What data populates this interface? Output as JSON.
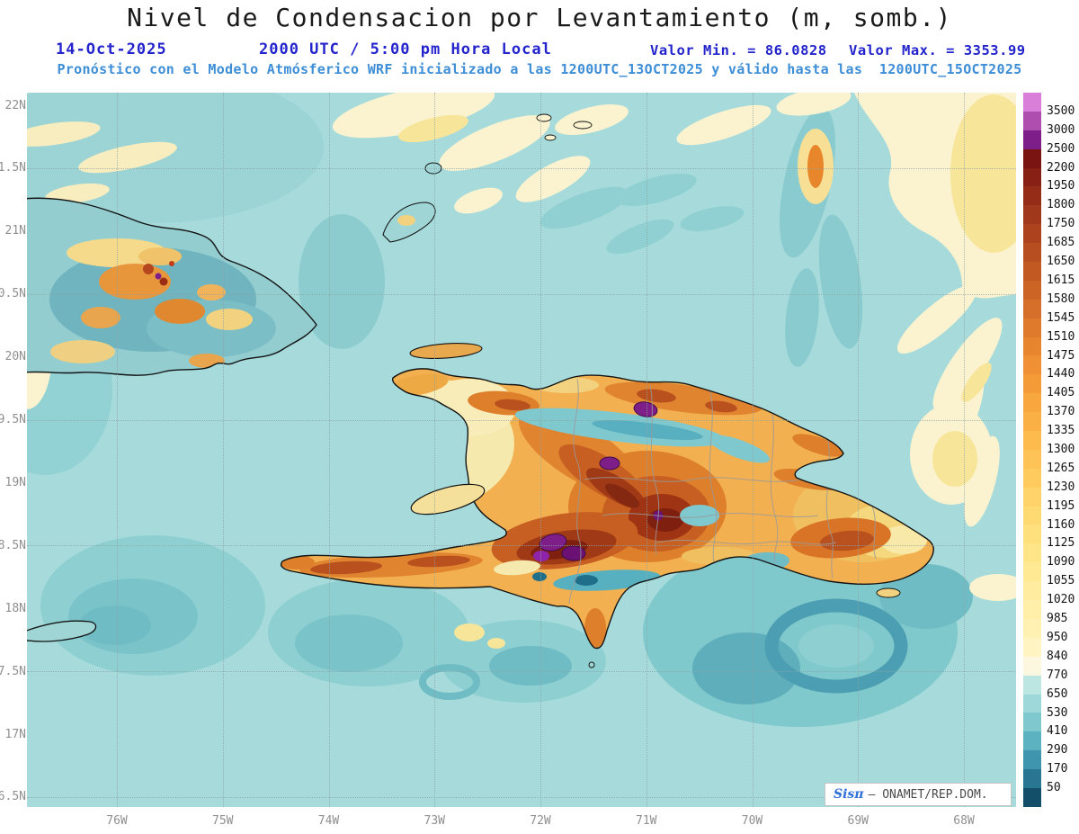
{
  "header": {
    "title": "Nivel de Condensacion por Levantamiento (m, somb.)",
    "date": "14-Oct-2025",
    "time": "2000 UTC / 5:00 pm Hora Local",
    "min_label": "Valor Min. = 86.0828",
    "max_label": "Valor Max. = 3353.99",
    "subtitle": "Pronóstico con el Modelo Atmósferico WRF inicializado a las 1200UTC_13OCT2025 y válido hasta las  1200UTC_15OCT2025"
  },
  "axes": {
    "lat_ticks": [
      "22N",
      "21.5N",
      "21N",
      "20.5N",
      "20N",
      "19.5N",
      "19N",
      "18.5N",
      "18N",
      "17.5N",
      "17N",
      "16.5N"
    ],
    "lon_ticks": [
      "76W",
      "75W",
      "74W",
      "73W",
      "72W",
      "71W",
      "70W",
      "69W",
      "68W"
    ]
  },
  "colorbar": {
    "levels": [
      3500,
      3000,
      2500,
      2200,
      1950,
      1800,
      1750,
      1685,
      1650,
      1615,
      1580,
      1545,
      1510,
      1475,
      1440,
      1405,
      1370,
      1335,
      1300,
      1265,
      1230,
      1195,
      1160,
      1125,
      1090,
      1055,
      1020,
      985,
      950,
      840,
      770,
      650,
      530,
      410,
      290,
      170,
      50
    ],
    "colors": [
      "#d97ed9",
      "#ae4fb0",
      "#7e1e88",
      "#7a1412",
      "#872015",
      "#942c18",
      "#a0381b",
      "#ac431e",
      "#b74e20",
      "#c25923",
      "#cc6426",
      "#d66f29",
      "#df7a2c",
      "#e7852f",
      "#ee9033",
      "#f49b38",
      "#f8a63e",
      "#fbb045",
      "#fdba4d",
      "#fec356",
      "#ffcb5f",
      "#ffd369",
      "#ffda73",
      "#ffe07d",
      "#ffe588",
      "#ffe993",
      "#ffec9e",
      "#ffefa8",
      "#fff1b2",
      "#fff4c2",
      "#fcf8df",
      "#bce6e2",
      "#9ed8d8",
      "#7fc8ce",
      "#5db2c1",
      "#4095ae",
      "#287692",
      "#134f68"
    ]
  },
  "watermark": {
    "brand": "Sisπ",
    "org": "– ONAMET/REP.DOM."
  },
  "chart_data": {
    "type": "heatmap",
    "title": "Nivel de Condensacion por Levantamiento (m, somb.)",
    "date": "14-Oct-2025",
    "time": "2000 UTC / 5:00 pm Hora Local",
    "model_info": "Pronóstico con el Modelo Atmósferico WRF inicializado a las 1200UTC_13OCT2025 y válido hasta las 1200UTC_15OCT2025",
    "units": "m",
    "value_min": 86.0828,
    "value_max": 3353.99,
    "x_tick_labels": [
      "76W",
      "75W",
      "74W",
      "73W",
      "72W",
      "71W",
      "70W",
      "69W",
      "68W"
    ],
    "y_tick_labels": [
      "22N",
      "21.5N",
      "21N",
      "20.5N",
      "20N",
      "19.5N",
      "19N",
      "18.5N",
      "18N",
      "17.5N",
      "17N",
      "16.5N"
    ],
    "contour_levels": [
      50,
      170,
      290,
      410,
      530,
      650,
      770,
      840,
      950,
      985,
      1020,
      1055,
      1090,
      1125,
      1160,
      1195,
      1230,
      1265,
      1300,
      1335,
      1370,
      1405,
      1440,
      1475,
      1510,
      1545,
      1580,
      1615,
      1650,
      1685,
      1750,
      1800,
      1950,
      2200,
      2500,
      3000,
      3500
    ],
    "legend_position": "right",
    "grid": "dotted"
  }
}
